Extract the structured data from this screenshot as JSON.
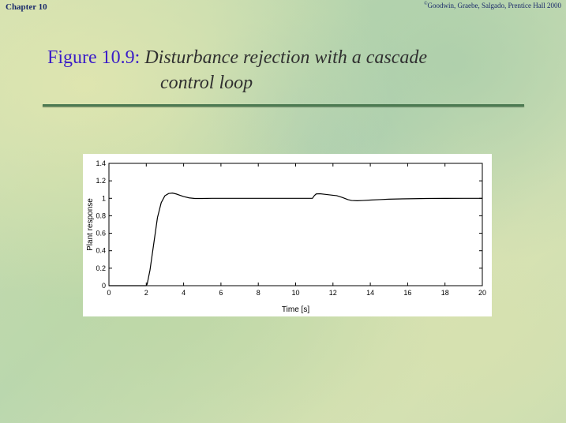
{
  "header": {
    "chapter": "Chapter 10",
    "copyright_symbol": "©",
    "copyright": "Goodwin, Graebe, Salgado, Prentice Hall 2000"
  },
  "title": {
    "label": "Figure 10.9:",
    "line1": "Disturbance rejection with a cascade",
    "line2": "control loop"
  },
  "colors": {
    "title_label": "#3a1cc8",
    "rule": "#4d7a52",
    "curve": "#000000"
  },
  "chart_data": {
    "type": "line",
    "title": "",
    "xlabel": "Time [s]",
    "ylabel": "Plant response",
    "xlim": [
      0,
      20
    ],
    "ylim": [
      0,
      1.4
    ],
    "xticks": [
      0,
      2,
      4,
      6,
      8,
      10,
      12,
      14,
      16,
      18,
      20
    ],
    "yticks": [
      0,
      0.2,
      0.4,
      0.6,
      0.8,
      1,
      1.2,
      1.4
    ],
    "grid": false,
    "series": [
      {
        "name": "",
        "x": [
          0,
          1,
          2,
          2.05,
          2.2,
          2.4,
          2.6,
          2.8,
          3.0,
          3.2,
          3.4,
          3.6,
          3.8,
          4.0,
          4.3,
          4.6,
          5.0,
          5.5,
          6,
          7,
          8,
          9,
          10,
          10.9,
          11.0,
          11.1,
          11.3,
          11.6,
          12.0,
          12.2,
          12.5,
          12.8,
          13.0,
          13.3,
          13.6,
          14.0,
          14.5,
          15,
          16,
          17,
          18,
          19,
          20
        ],
        "y": [
          0,
          0,
          0,
          0.02,
          0.18,
          0.48,
          0.78,
          0.95,
          1.03,
          1.055,
          1.06,
          1.05,
          1.035,
          1.02,
          1.005,
          0.998,
          0.998,
          1.0,
          1.0,
          1.0,
          1.0,
          1.0,
          1.0,
          1.0,
          1.03,
          1.05,
          1.052,
          1.045,
          1.035,
          1.03,
          1.01,
          0.985,
          0.975,
          0.972,
          0.975,
          0.98,
          0.985,
          0.99,
          0.995,
          0.998,
          0.999,
          1.0,
          1.0
        ]
      }
    ]
  }
}
